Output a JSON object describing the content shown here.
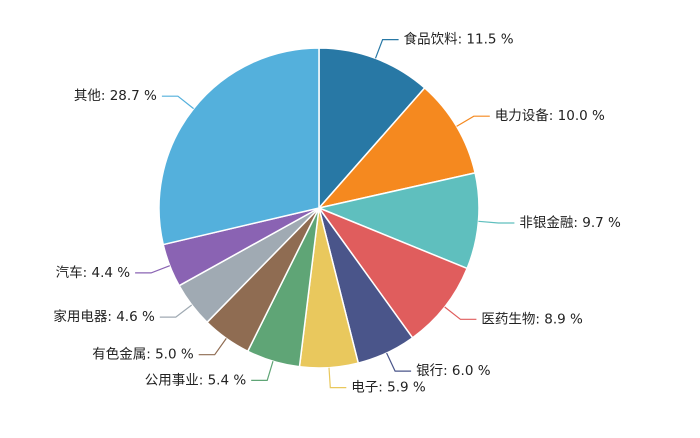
{
  "chart_data": {
    "type": "pie",
    "unit": "%",
    "legend": "none",
    "slices": [
      {
        "label": "食品饮料",
        "value": 11.5,
        "color": "#2878a5"
      },
      {
        "label": "电力设备",
        "value": 10.0,
        "color": "#f5891f"
      },
      {
        "label": "非银金融",
        "value": 9.7,
        "color": "#5fbfbe"
      },
      {
        "label": "医药生物",
        "value": 8.9,
        "color": "#e05d5d"
      },
      {
        "label": "银行",
        "value": 6.0,
        "color": "#4a558a"
      },
      {
        "label": "电子",
        "value": 5.9,
        "color": "#e9c85d"
      },
      {
        "label": "公用事业",
        "value": 5.4,
        "color": "#5fa576"
      },
      {
        "label": "有色金属",
        "value": 5.0,
        "color": "#8f6c52"
      },
      {
        "label": "家用电器",
        "value": 4.6,
        "color": "#a0aab3"
      },
      {
        "label": "汽车",
        "value": 4.4,
        "color": "#8a63b3"
      },
      {
        "label": "其他",
        "value": 28.7,
        "color": "#54b0dc"
      }
    ]
  }
}
